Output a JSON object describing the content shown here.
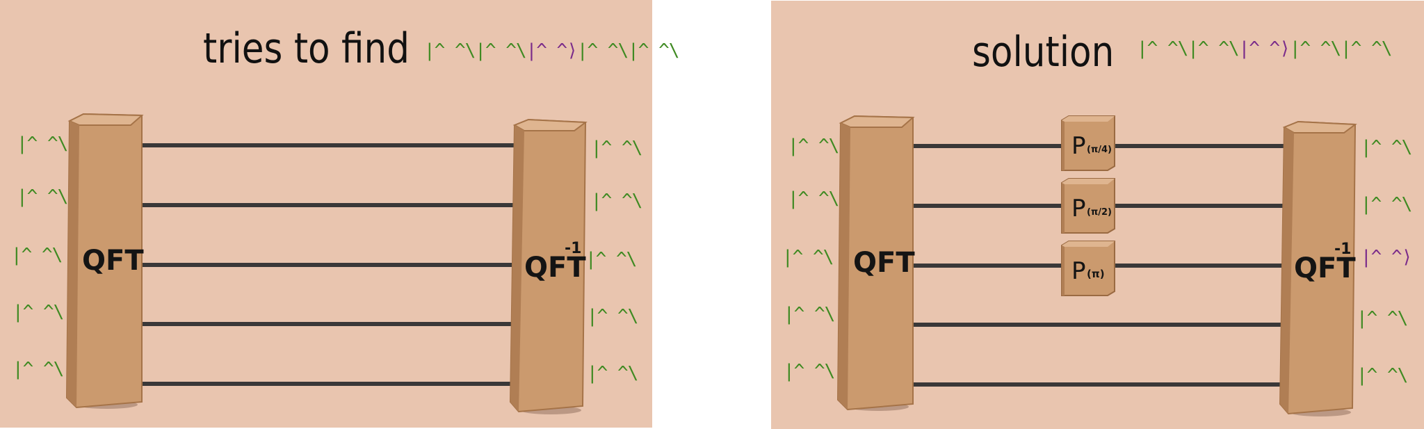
{
  "left_panel": {
    "title": "tries to find",
    "target_kets": [
      {
        "text": "|^ ^\\",
        "color": "#3f8a22"
      },
      {
        "text": "|^ ^\\",
        "color": "#3f8a22"
      },
      {
        "text": "|^ ^⟩",
        "color": "#7a2b8a"
      },
      {
        "text": "|^ ^\\",
        "color": "#3f8a22"
      },
      {
        "text": "|^ ^\\",
        "color": "#3f8a22"
      }
    ],
    "input_kets": [
      "|^ ^\\",
      "|^ ^\\",
      "|^ ^\\",
      "|^ ^\\",
      "|^ ^\\"
    ],
    "output_kets": [
      "|^ ^\\",
      "|^ ^\\",
      "|^ ^\\",
      "|^ ^\\",
      "|^ ^\\"
    ],
    "qft_label": "QFT",
    "iqft_label": "QFT",
    "iqft_superscript": "-1"
  },
  "right_panel": {
    "title": "solution",
    "target_kets": [
      {
        "text": "|^ ^\\",
        "color": "#3f8a22"
      },
      {
        "text": "|^ ^\\",
        "color": "#3f8a22"
      },
      {
        "text": "|^ ^⟩",
        "color": "#7a2b8a"
      },
      {
        "text": "|^ ^\\",
        "color": "#3f8a22"
      },
      {
        "text": "|^ ^\\",
        "color": "#3f8a22"
      }
    ],
    "input_kets": [
      "|^ ^\\",
      "|^ ^\\",
      "|^ ^\\",
      "|^ ^\\",
      "|^ ^\\"
    ],
    "output_kets": [
      {
        "text": "|^ ^\\",
        "color": "#3f8a22"
      },
      {
        "text": "|^ ^\\",
        "color": "#3f8a22"
      },
      {
        "text": "|^ ^⟩",
        "color": "#7a2b8a"
      },
      {
        "text": "|^ ^\\",
        "color": "#3f8a22"
      },
      {
        "text": "|^ ^\\",
        "color": "#3f8a22"
      }
    ],
    "qft_label": "QFT",
    "iqft_label": "QFT",
    "iqft_superscript": "-1",
    "phase_gates": [
      {
        "label": "P",
        "arg": "(π/4)"
      },
      {
        "label": "P",
        "arg": "(π/2)"
      },
      {
        "label": "P",
        "arg": "(π)"
      }
    ]
  },
  "colors": {
    "panel_bg": "#e9c5af",
    "box": "#cb9a6e",
    "box_dark": "#b07e54",
    "box_light": "#dfb590",
    "wire": "#3a3838",
    "ket_green": "#3f8a22",
    "ket_purple": "#7a2b8a"
  }
}
